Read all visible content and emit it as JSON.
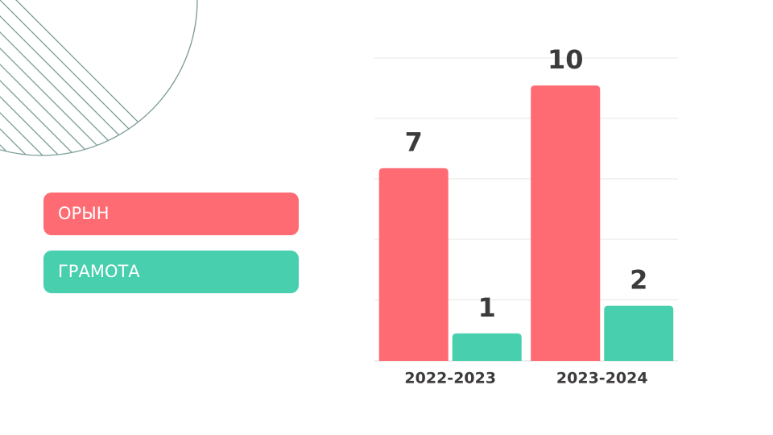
{
  "chart_data": {
    "type": "bar",
    "categories": [
      "2022-2023",
      "2023-2024"
    ],
    "series": [
      {
        "name": "ОРЫН",
        "color": "#ff6b72",
        "values": [
          7,
          10
        ]
      },
      {
        "name": "ГРАМОТА",
        "color": "#48cfae",
        "values": [
          1,
          2
        ]
      }
    ],
    "ylim": [
      0,
      11
    ]
  }
}
